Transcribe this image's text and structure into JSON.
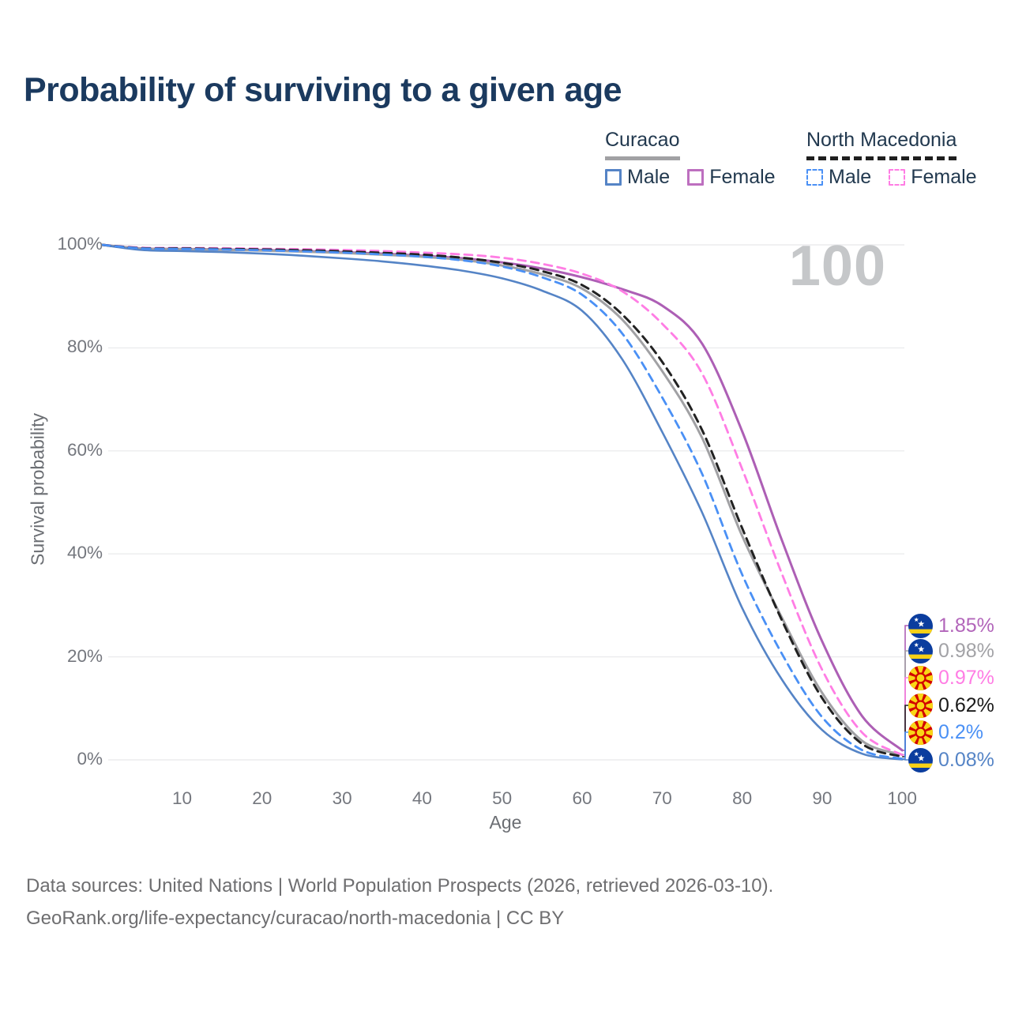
{
  "title": "Probability of surviving to a given age",
  "watermark": "100",
  "legend": {
    "groups": [
      {
        "country": "Curacao",
        "line_style": "solid",
        "underline_color": "#a1a1a4",
        "items": [
          {
            "label": "Male",
            "color": "#5584c6",
            "dashed": false
          },
          {
            "label": "Female",
            "color": "#bd6fbf",
            "dashed": false
          }
        ]
      },
      {
        "country": "North Macedonia",
        "line_style": "dashed",
        "underline_color": "#1f1f1f",
        "items": [
          {
            "label": "Male",
            "color": "#4a90f5",
            "dashed": true
          },
          {
            "label": "Female",
            "color": "#ff7de4",
            "dashed": true
          }
        ]
      }
    ]
  },
  "chart_data": {
    "type": "line",
    "title": "Probability of surviving to a given age",
    "xlabel": "Age",
    "ylabel": "Survival probability",
    "x_range": [
      0,
      100
    ],
    "y_range": [
      0,
      100
    ],
    "grid": "horizontal",
    "x_ticks": [
      10,
      20,
      30,
      40,
      50,
      60,
      70,
      80,
      90,
      100
    ],
    "y_ticks": [
      {
        "value": 0,
        "label": "0%"
      },
      {
        "value": 20,
        "label": "20%"
      },
      {
        "value": 40,
        "label": "40%"
      },
      {
        "value": 60,
        "label": "60%"
      },
      {
        "value": 80,
        "label": "80%"
      },
      {
        "value": 100,
        "label": "100%"
      }
    ],
    "ages": [
      0,
      5,
      10,
      15,
      20,
      25,
      30,
      35,
      40,
      45,
      50,
      55,
      60,
      65,
      70,
      75,
      80,
      85,
      90,
      95,
      100
    ],
    "series": [
      {
        "id": "curacao-female",
        "name": "Curacao Female",
        "country": "Curacao",
        "flag_icon": "curacao-flag-icon",
        "sex": "female",
        "color": "#ad5fb5",
        "dashed": false,
        "width": 3,
        "end_label": "1.85%",
        "end_label_color": "#b265ba",
        "values": [
          100,
          99.3,
          99.2,
          99.1,
          99.0,
          98.8,
          98.6,
          98.3,
          97.9,
          97.4,
          96.6,
          95.4,
          93.7,
          91.4,
          88.2,
          80.8,
          63.8,
          42.5,
          23.0,
          8.5,
          1.85
        ]
      },
      {
        "id": "curacao-all",
        "name": "Curacao (both sexes)",
        "country": "Curacao",
        "flag_icon": "curacao-flag-icon",
        "sex": "all",
        "color": "#a1a1a4",
        "dashed": false,
        "width": 3,
        "end_label": "0.98%",
        "end_label_color": "#a2a2a6",
        "values": [
          100,
          99.25,
          99.15,
          99.05,
          98.9,
          98.7,
          98.45,
          98.1,
          97.7,
          97.1,
          96.0,
          94.3,
          91.5,
          85.5,
          75.5,
          62.5,
          43.5,
          27.5,
          13.0,
          3.7,
          0.98
        ]
      },
      {
        "id": "nm-female",
        "name": "North Macedonia Female",
        "country": "North Macedonia",
        "flag_icon": "north-macedonia-flag-icon",
        "sex": "female",
        "color": "#ff7de4",
        "dashed": true,
        "width": 2.8,
        "end_label": "0.97%",
        "end_label_color": "#ff7de4",
        "values": [
          100,
          99.45,
          99.4,
          99.35,
          99.25,
          99.15,
          99.0,
          98.8,
          98.5,
          98.15,
          97.5,
          96.3,
          94.4,
          91.0,
          84.7,
          75.0,
          56.5,
          36.0,
          17.5,
          5.3,
          0.97
        ]
      },
      {
        "id": "nm-all",
        "name": "North Macedonia (both sexes)",
        "country": "North Macedonia",
        "flag_icon": "north-macedonia-flag-icon",
        "sex": "all",
        "color": "#222222",
        "dashed": true,
        "width": 3,
        "end_label": "0.62%",
        "end_label_color": "#1a1a1a",
        "values": [
          100,
          99.35,
          99.3,
          99.2,
          99.1,
          98.95,
          98.75,
          98.45,
          98.1,
          97.5,
          96.5,
          94.9,
          92.2,
          86.5,
          77.3,
          64.0,
          45.0,
          27.0,
          12.0,
          3.1,
          0.62
        ]
      },
      {
        "id": "nm-male",
        "name": "North Macedonia Male",
        "country": "North Macedonia",
        "flag_icon": "north-macedonia-flag-icon",
        "sex": "male",
        "color": "#4a90f5",
        "dashed": true,
        "width": 2.8,
        "end_label": "0.2%",
        "end_label_color": "#4a90f5",
        "values": [
          100,
          99.3,
          99.2,
          99.1,
          98.95,
          98.75,
          98.5,
          98.15,
          97.7,
          97.0,
          95.8,
          93.7,
          90.3,
          82.8,
          70.4,
          55.5,
          36.0,
          20.5,
          8.3,
          1.9,
          0.2
        ]
      },
      {
        "id": "curacao-male",
        "name": "Curacao Male",
        "country": "Curacao",
        "flag_icon": "curacao-flag-icon",
        "sex": "male",
        "color": "#5584c6",
        "dashed": false,
        "width": 2.6,
        "end_label": "0.08%",
        "end_label_color": "#5584c6",
        "values": [
          100,
          99.0,
          98.8,
          98.6,
          98.3,
          97.9,
          97.4,
          96.8,
          96.0,
          95.0,
          93.5,
          91.1,
          87.2,
          77.8,
          63.7,
          48.0,
          29.5,
          15.5,
          5.8,
          1.2,
          0.08
        ]
      }
    ]
  },
  "footer": {
    "line1": "Data sources: United Nations | World Population Prospects (2026, retrieved 2026-03-10).",
    "line2": "GeoRank.org/life-expectancy/curacao/north-macedonia | CC BY"
  }
}
